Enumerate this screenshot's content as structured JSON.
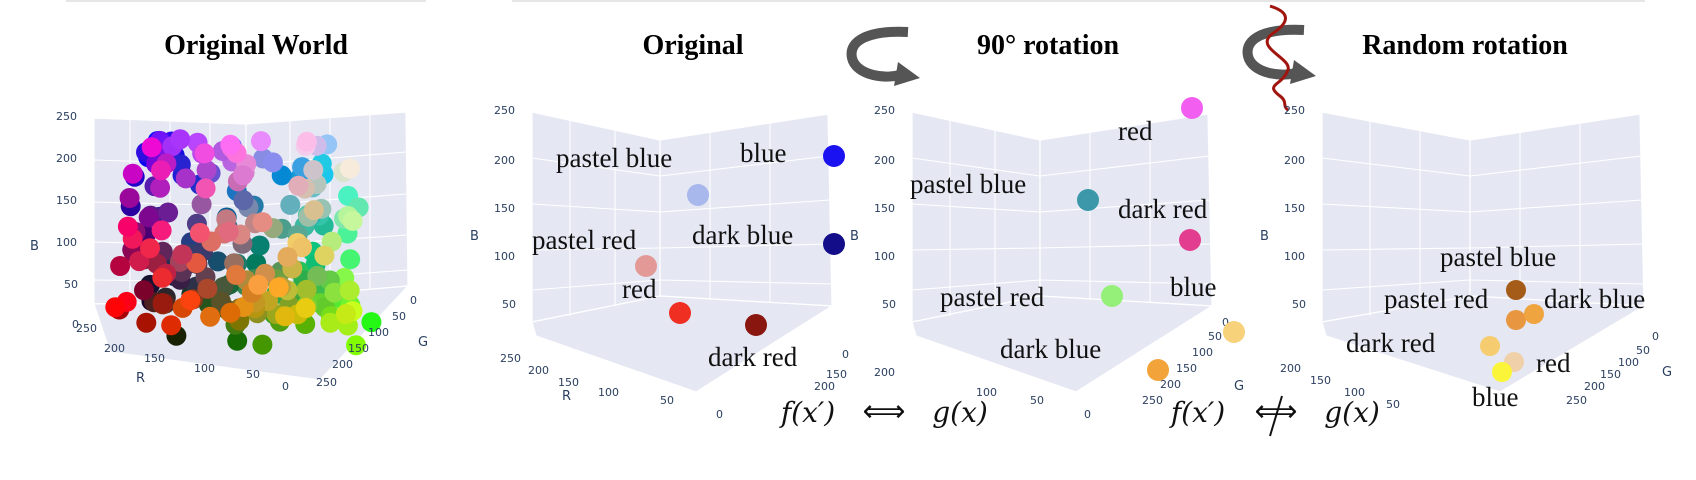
{
  "titles": {
    "original_world": "Original World",
    "original": "Original",
    "rot90": "90° rotation",
    "random": "Random rotation"
  },
  "axes": {
    "b_label": "B",
    "r_label": "R",
    "g_label": "G",
    "b_ticks": [
      "250",
      "200",
      "150",
      "100",
      "50",
      "0"
    ],
    "r_ticks": [
      "250",
      "200",
      "150",
      "100",
      "50",
      "0"
    ],
    "g_ticks": [
      "0",
      "50",
      "100",
      "150",
      "200",
      "250"
    ]
  },
  "panels": {
    "original": {
      "points": [
        {
          "label": "blue",
          "color": "#1a12f0",
          "rgb": [
            0,
            0,
            255
          ]
        },
        {
          "label": "pastel blue",
          "color": "#a8b8ec",
          "rgb": [
            174,
            198,
            207
          ]
        },
        {
          "label": "dark blue",
          "color": "#130d8a",
          "rgb": [
            0,
            0,
            139
          ]
        },
        {
          "label": "pastel red",
          "color": "#e39a96",
          "rgb": [
            255,
            105,
            97
          ]
        },
        {
          "label": "red",
          "color": "#ef2f22",
          "rgb": [
            255,
            0,
            0
          ]
        },
        {
          "label": "dark red",
          "color": "#8a170f",
          "rgb": [
            139,
            0,
            0
          ]
        }
      ]
    },
    "rot90": {
      "points": [
        {
          "label": "red",
          "color": "#f25ef0"
        },
        {
          "label": "pastel blue",
          "color": "#3c97a8"
        },
        {
          "label": "dark red",
          "color": "#e33d8f"
        },
        {
          "label": "pastel red",
          "color": "#95f07a"
        },
        {
          "label": "blue",
          "color": "#f8d27a"
        },
        {
          "label": "dark blue",
          "color": "#f2a33a"
        }
      ]
    },
    "random": {
      "points": [
        {
          "label": "pastel blue",
          "color": "#a45c18"
        },
        {
          "label": "pastel red",
          "color": "#e8963f"
        },
        {
          "label": "dark blue",
          "color": "#f0a440"
        },
        {
          "label": "dark red",
          "color": "#f5cd70"
        },
        {
          "label": "red",
          "color": "#efd0a8"
        },
        {
          "label": "blue",
          "color": "#fbf53a"
        }
      ]
    }
  },
  "formulas": {
    "left_f": "f(x′)",
    "left_g": "g(x)",
    "right_f": "f(x′)",
    "right_g": "g(x)",
    "equivalent": "⟺",
    "not_equivalent": "⟺"
  },
  "arrows": {
    "rotate_arrow_color": "#555555",
    "random_curve_color": "#a0160f"
  }
}
